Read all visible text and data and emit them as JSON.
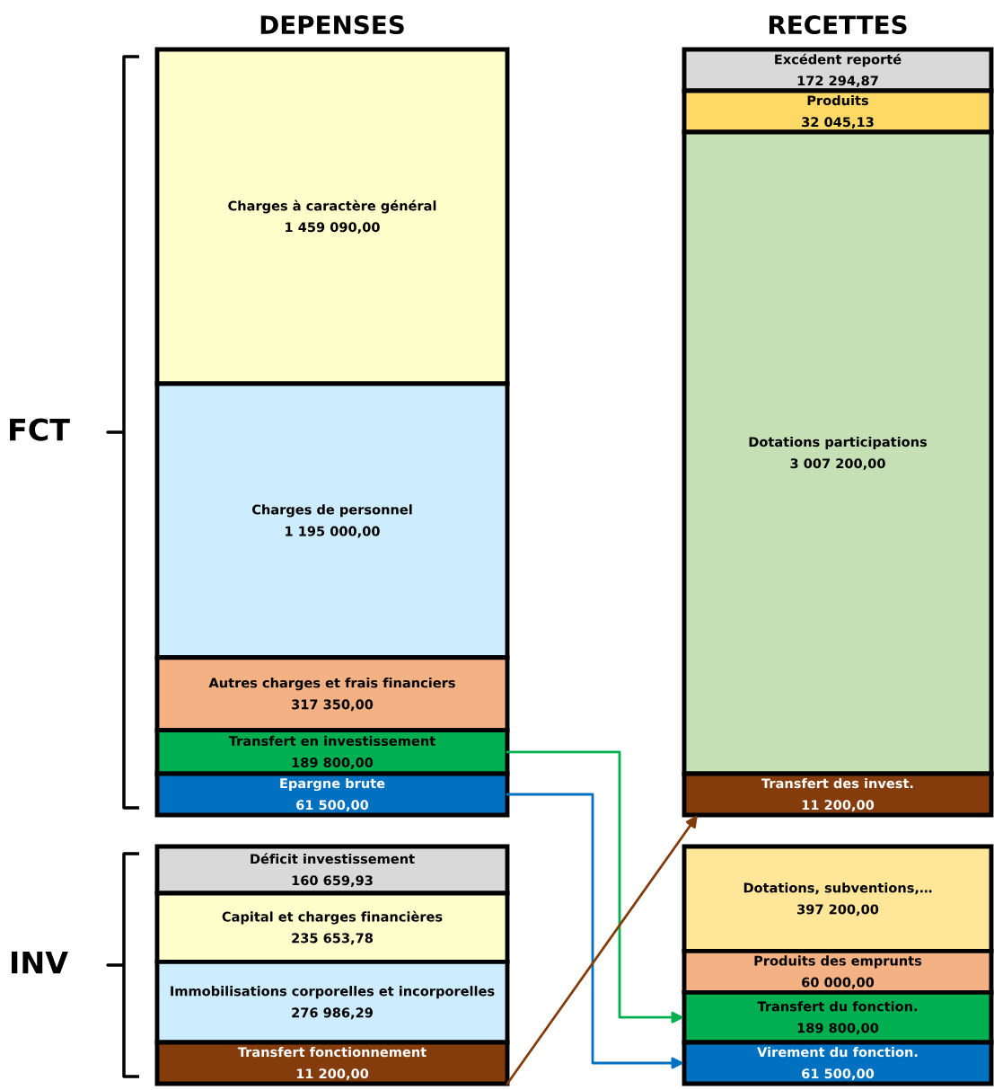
{
  "chart_data": {
    "type": "other",
    "categories": [
      "DEPENSES",
      "RECETTES"
    ],
    "y_categories": [
      "FCT",
      "INV"
    ],
    "series": [
      {
        "name": "Charges à caractère général",
        "color": "#ffffcc",
        "values": [
          1459090.0,
          null
        ],
        "value_labels": [
          "1 459 090,00",
          null
        ]
      },
      {
        "name": "Charges de personnel",
        "color": "#cdecfd",
        "values": [
          1195000.0,
          null
        ],
        "value_labels": [
          "1 195 000,00",
          null
        ]
      },
      {
        "name": "Autres charges et frais financiers",
        "color": "#f4b183",
        "values": [
          317350.0,
          null
        ],
        "value_labels": [
          "317 350,00",
          null
        ]
      },
      {
        "name": "Transfert en investissement",
        "color": "#00b050",
        "values": [
          189800.0,
          null
        ],
        "value_labels": [
          "189 800,00",
          null
        ]
      },
      {
        "name": "Epargne brute",
        "color": "#0070c0",
        "values": [
          61500.0,
          null
        ],
        "value_labels": [
          "61 500,00",
          null
        ]
      },
      {
        "name": "Déficit investissement",
        "color": "#d9d9d9",
        "values": [
          160659.93,
          null
        ],
        "value_labels": [
          "160 659,93",
          null
        ]
      },
      {
        "name": "Capital et charges financières",
        "color": "#ffffcc",
        "values": [
          235653.78,
          null
        ],
        "value_labels": [
          "235 653,78",
          null
        ]
      },
      {
        "name": "Immobilisations corporelles et incorporelles",
        "color": "#cdecfd",
        "values": [
          276986.29,
          null
        ],
        "value_labels": [
          "276 986,29",
          null
        ]
      },
      {
        "name": "Transfert fonctionnement",
        "color": "#843c0c",
        "values": [
          11200.0,
          null
        ],
        "value_labels": [
          "11 200,00",
          null
        ]
      },
      {
        "name": "Excédent reporté",
        "color": "#d9d9d9",
        "values": [
          null,
          172294.87
        ],
        "value_labels": [
          null,
          "172 294,87"
        ]
      },
      {
        "name": "Produits",
        "color": "#ffd966",
        "values": [
          null,
          32045.13
        ],
        "value_labels": [
          null,
          "32 045,13"
        ]
      },
      {
        "name": "Dotations participations",
        "color": "#c5e0b4",
        "values": [
          null,
          3007200.0
        ],
        "value_labels": [
          null,
          "3 007 200,00"
        ]
      },
      {
        "name": "Transfert des invest.",
        "color": "#843c0c",
        "values": [
          null,
          11200.0
        ],
        "value_labels": [
          null,
          "11 200,00"
        ]
      },
      {
        "name": "Dotations, subventions,…",
        "color": "#ffe699",
        "values": [
          null,
          397200.0
        ],
        "value_labels": [
          null,
          "397 200,00"
        ]
      },
      {
        "name": "Produits des emprunts",
        "color": "#f4b183",
        "values": [
          null,
          60000.0
        ],
        "value_labels": [
          null,
          "60 000,00"
        ]
      },
      {
        "name": "Transfert du fonction.",
        "color": "#00b050",
        "values": [
          null,
          189800.0
        ],
        "value_labels": [
          null,
          "189 800,00"
        ]
      },
      {
        "name": "Virement du fonction.",
        "color": "#0070c0",
        "values": [
          null,
          61500.0
        ],
        "value_labels": [
          null,
          "61 500,00"
        ]
      }
    ]
  }
}
